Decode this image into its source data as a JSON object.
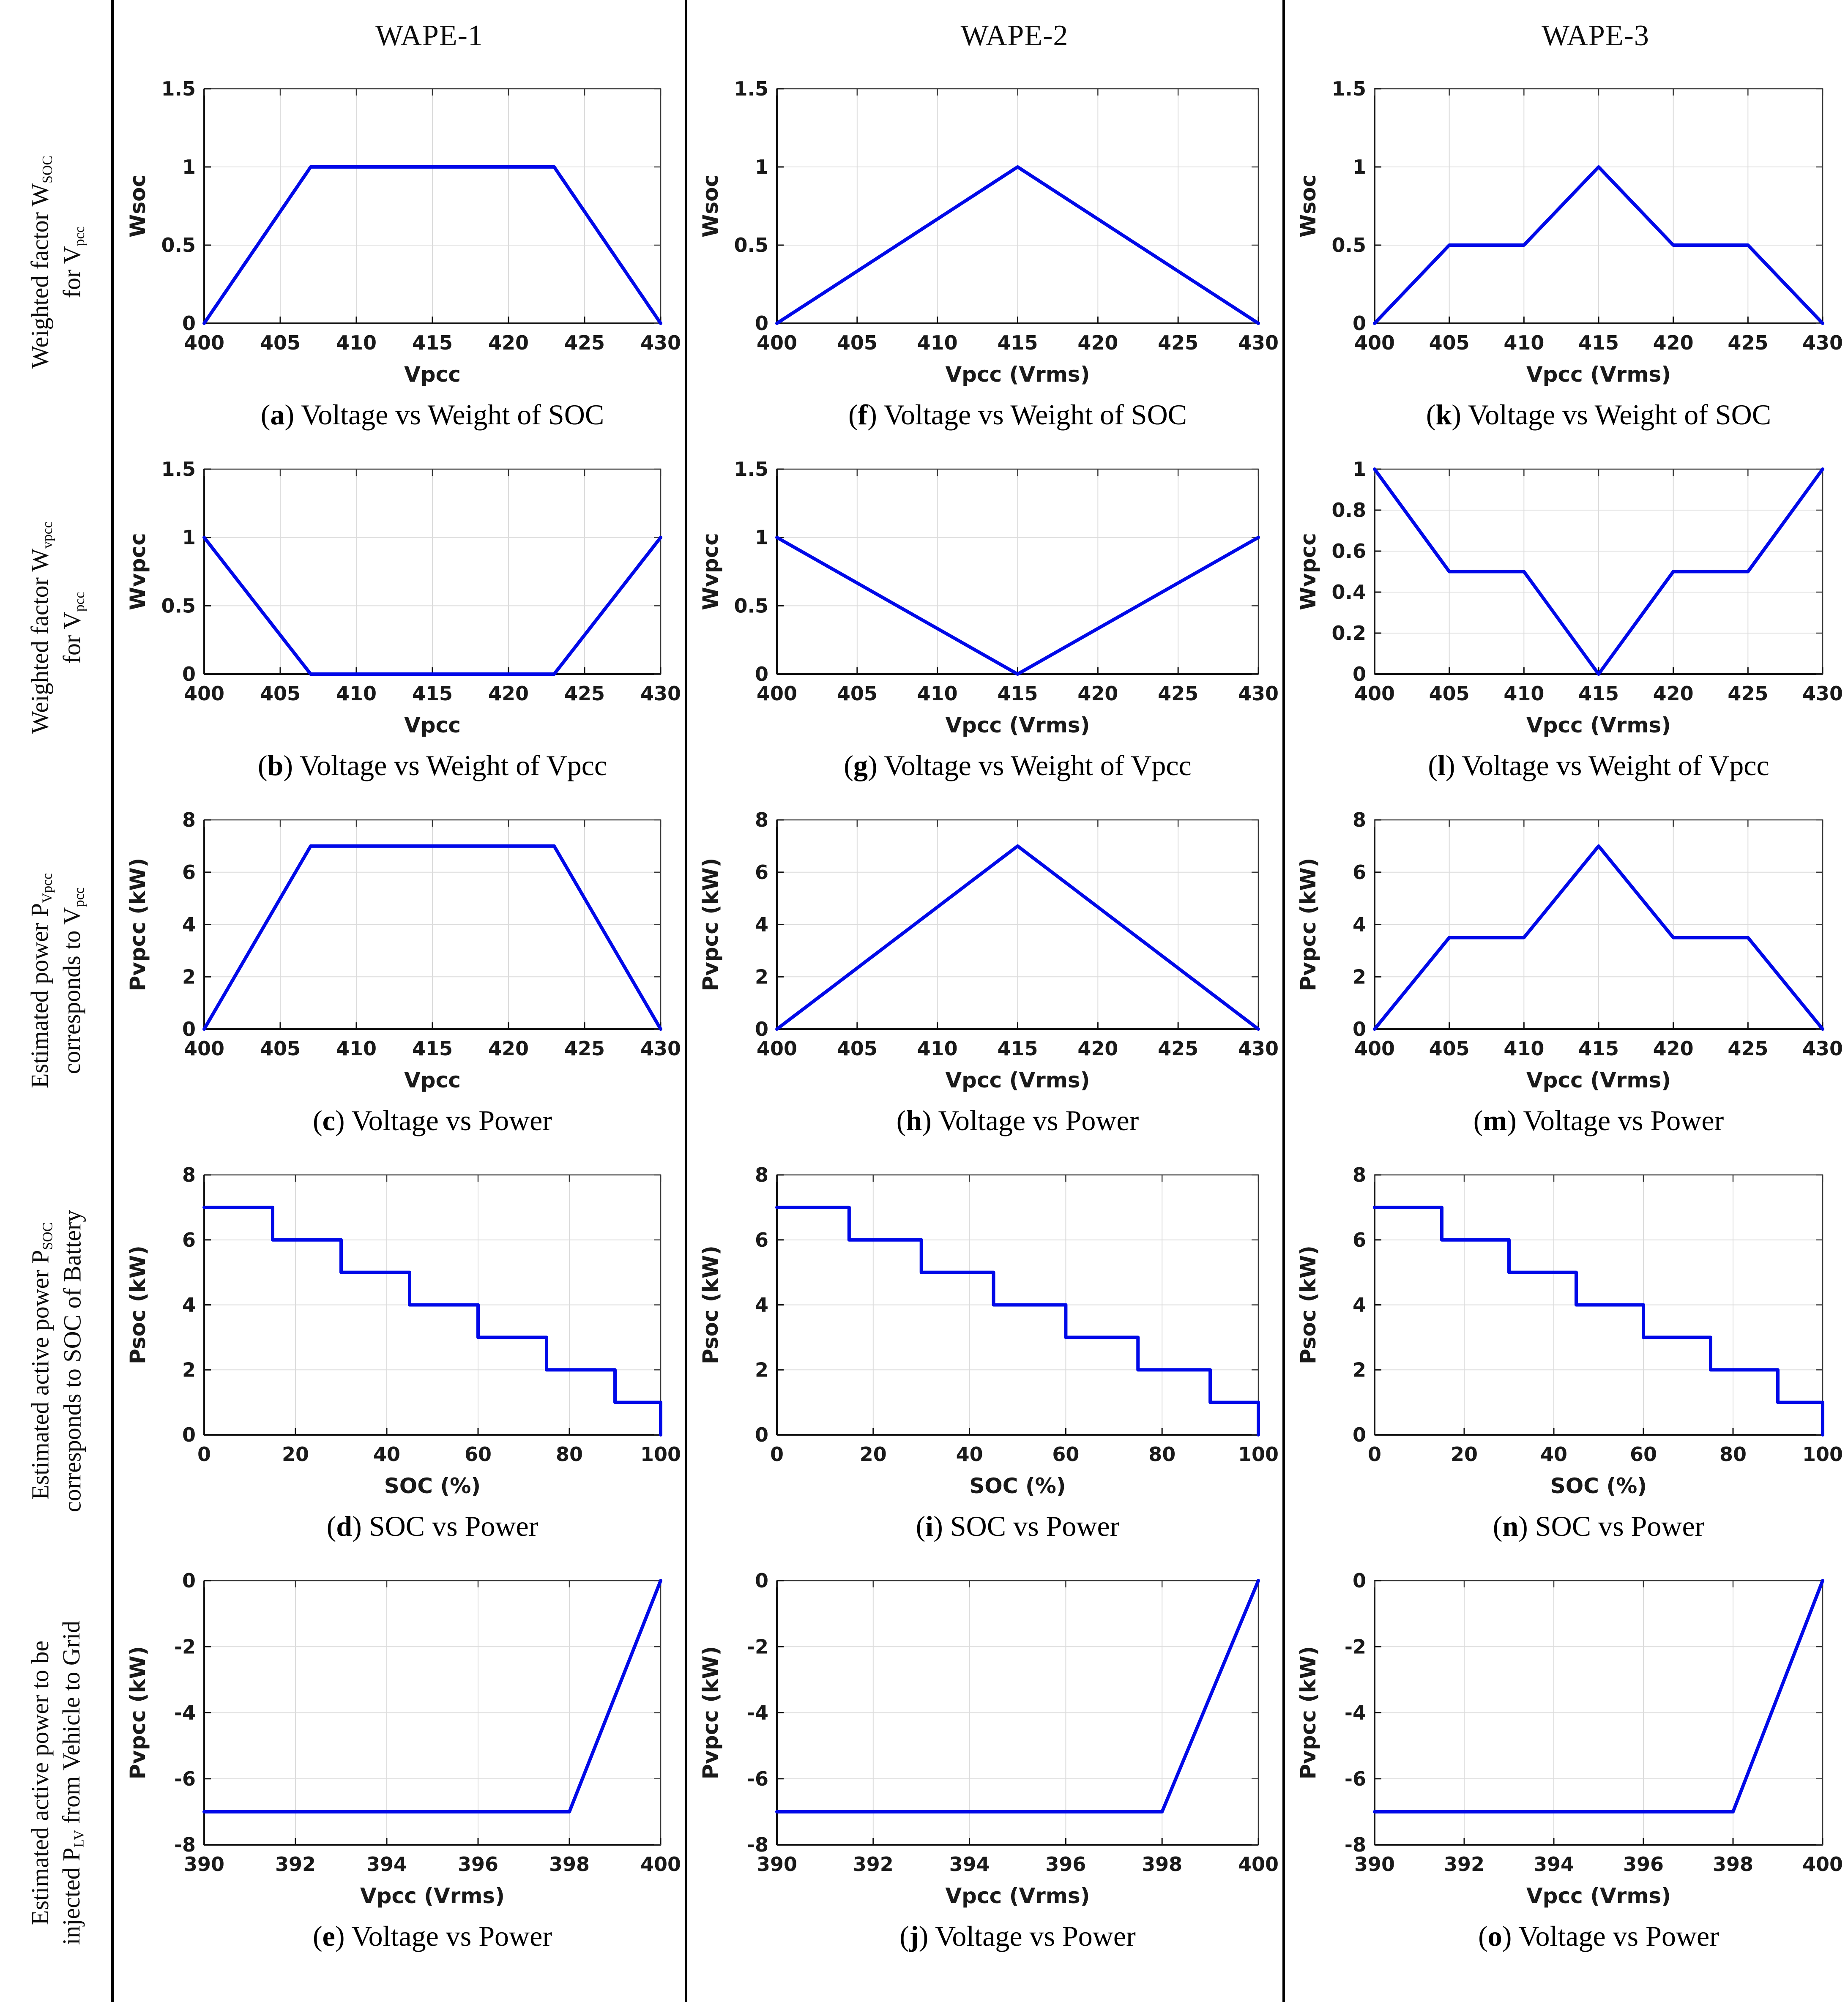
{
  "columns": [
    {
      "title": "WAPE-1"
    },
    {
      "title": "WAPE-2"
    },
    {
      "title": "WAPE-3"
    }
  ],
  "row_labels": [
    {
      "lines": [
        [
          {
            "t": "Weighted factor W"
          },
          {
            "s": "SOC"
          }
        ],
        [
          {
            "t": "for V"
          },
          {
            "s": "pcc"
          }
        ]
      ]
    },
    {
      "lines": [
        [
          {
            "t": "Weighted factor W"
          },
          {
            "s": "vpcc"
          }
        ],
        [
          {
            "t": "for V"
          },
          {
            "s": "pcc"
          }
        ]
      ]
    },
    {
      "lines": [
        [
          {
            "t": "Estimated power P"
          },
          {
            "s": "Vpcc"
          }
        ],
        [
          {
            "t": "corresponds to V"
          },
          {
            "s": "pcc"
          }
        ]
      ]
    },
    {
      "lines": [
        [
          {
            "t": "Estimated active power P"
          },
          {
            "s": "SOC"
          }
        ],
        [
          {
            "t": "corresponds to SOC of Battery"
          }
        ]
      ]
    },
    {
      "lines": [
        [
          {
            "t": "Estimated active power to be"
          }
        ],
        [
          {
            "t": "injected P"
          },
          {
            "s": "LV"
          },
          {
            "t": " from Vehicle to Grid"
          }
        ]
      ]
    }
  ],
  "colors": {
    "line": "#0009e8",
    "grid": "#dcdcdc",
    "axis_box": "#3a3a3a",
    "axis_dark": "#111111",
    "text": "#1a1a1a",
    "divider": "#000000"
  },
  "chart_data": [
    {
      "id": "a",
      "type": "line",
      "title": "",
      "xlabel": "Vpcc",
      "ylabel": "Wsoc",
      "xlim": [
        400,
        430
      ],
      "xticks": [
        400,
        405,
        410,
        415,
        420,
        425,
        430
      ],
      "ylim": [
        0,
        1.5
      ],
      "yticks": [
        0,
        0.5,
        1,
        1.5
      ],
      "points": [
        [
          400,
          0
        ],
        [
          407,
          1
        ],
        [
          423,
          1
        ],
        [
          430,
          0
        ]
      ],
      "caption_letter": "a",
      "caption_text": "Voltage vs Weight of SOC"
    },
    {
      "id": "f",
      "type": "line",
      "title": "",
      "xlabel": "Vpcc (Vrms)",
      "ylabel": "Wsoc",
      "xlim": [
        400,
        430
      ],
      "xticks": [
        400,
        405,
        410,
        415,
        420,
        425,
        430
      ],
      "ylim": [
        0,
        1.5
      ],
      "yticks": [
        0,
        0.5,
        1,
        1.5
      ],
      "points": [
        [
          400,
          0
        ],
        [
          415,
          1
        ],
        [
          430,
          0
        ]
      ],
      "caption_letter": "f",
      "caption_text": "Voltage vs Weight of SOC"
    },
    {
      "id": "k",
      "type": "line",
      "title": "",
      "xlabel": "Vpcc (Vrms)",
      "ylabel": "Wsoc",
      "xlim": [
        400,
        430
      ],
      "xticks": [
        400,
        405,
        410,
        415,
        420,
        425,
        430
      ],
      "ylim": [
        0,
        1.5
      ],
      "yticks": [
        0,
        0.5,
        1,
        1.5
      ],
      "points": [
        [
          400,
          0
        ],
        [
          405,
          0.5
        ],
        [
          410,
          0.5
        ],
        [
          415,
          1
        ],
        [
          420,
          0.5
        ],
        [
          425,
          0.5
        ],
        [
          430,
          0
        ]
      ],
      "caption_letter": "k",
      "caption_text": "Voltage vs Weight of SOC"
    },
    {
      "id": "b",
      "type": "line",
      "title": "",
      "xlabel": "Vpcc",
      "ylabel": "Wvpcc",
      "xlim": [
        400,
        430
      ],
      "xticks": [
        400,
        405,
        410,
        415,
        420,
        425,
        430
      ],
      "ylim": [
        0,
        1.5
      ],
      "yticks": [
        0,
        0.5,
        1,
        1.5
      ],
      "points": [
        [
          400,
          1
        ],
        [
          407,
          0
        ],
        [
          423,
          0
        ],
        [
          430,
          1
        ]
      ],
      "caption_letter": "b",
      "caption_text": "Voltage vs Weight of Vpcc"
    },
    {
      "id": "g",
      "type": "line",
      "title": "",
      "xlabel": "Vpcc (Vrms)",
      "ylabel": "Wvpcc",
      "xlim": [
        400,
        430
      ],
      "xticks": [
        400,
        405,
        410,
        415,
        420,
        425,
        430
      ],
      "ylim": [
        0,
        1.5
      ],
      "yticks": [
        0,
        0.5,
        1,
        1.5
      ],
      "points": [
        [
          400,
          1
        ],
        [
          415,
          0
        ],
        [
          430,
          1
        ]
      ],
      "caption_letter": "g",
      "caption_text": "Voltage vs Weight of Vpcc"
    },
    {
      "id": "l",
      "type": "line",
      "title": "",
      "xlabel": "Vpcc (Vrms)",
      "ylabel": "Wvpcc",
      "xlim": [
        400,
        430
      ],
      "xticks": [
        400,
        405,
        410,
        415,
        420,
        425,
        430
      ],
      "ylim": [
        0,
        1
      ],
      "yticks": [
        0,
        0.2,
        0.4,
        0.6,
        0.8,
        1
      ],
      "points": [
        [
          400,
          1
        ],
        [
          405,
          0.5
        ],
        [
          410,
          0.5
        ],
        [
          415,
          0
        ],
        [
          420,
          0.5
        ],
        [
          425,
          0.5
        ],
        [
          430,
          1
        ]
      ],
      "caption_letter": "l",
      "caption_text": "Voltage vs Weight of Vpcc"
    },
    {
      "id": "c",
      "type": "line",
      "title": "",
      "xlabel": "Vpcc",
      "ylabel": "Pvpcc (kW)",
      "xlim": [
        400,
        430
      ],
      "xticks": [
        400,
        405,
        410,
        415,
        420,
        425,
        430
      ],
      "ylim": [
        0,
        8
      ],
      "yticks": [
        0,
        2,
        4,
        6,
        8
      ],
      "points": [
        [
          400,
          0
        ],
        [
          407,
          7
        ],
        [
          423,
          7
        ],
        [
          430,
          0
        ]
      ],
      "caption_letter": "c",
      "caption_text": "Voltage vs Power"
    },
    {
      "id": "h",
      "type": "line",
      "title": "",
      "xlabel": "Vpcc (Vrms)",
      "ylabel": "Pvpcc (kW)",
      "xlim": [
        400,
        430
      ],
      "xticks": [
        400,
        405,
        410,
        415,
        420,
        425,
        430
      ],
      "ylim": [
        0,
        8
      ],
      "yticks": [
        0,
        2,
        4,
        6,
        8
      ],
      "points": [
        [
          400,
          0
        ],
        [
          415,
          7
        ],
        [
          430,
          0
        ]
      ],
      "caption_letter": "h",
      "caption_text": "Voltage vs Power"
    },
    {
      "id": "m",
      "type": "line",
      "title": "",
      "xlabel": "Vpcc (Vrms)",
      "ylabel": "Pvpcc (kW)",
      "xlim": [
        400,
        430
      ],
      "xticks": [
        400,
        405,
        410,
        415,
        420,
        425,
        430
      ],
      "ylim": [
        0,
        8
      ],
      "yticks": [
        0,
        2,
        4,
        6,
        8
      ],
      "points": [
        [
          400,
          0
        ],
        [
          405,
          3.5
        ],
        [
          410,
          3.5
        ],
        [
          415,
          7
        ],
        [
          420,
          3.5
        ],
        [
          425,
          3.5
        ],
        [
          430,
          0
        ]
      ],
      "caption_letter": "m",
      "caption_text": "Voltage vs Power"
    },
    {
      "id": "d",
      "type": "line",
      "title": "",
      "xlabel": "SOC (%)",
      "ylabel": "Psoc (kW)",
      "xlim": [
        0,
        100
      ],
      "xticks": [
        0,
        20,
        40,
        60,
        80,
        100
      ],
      "ylim": [
        0,
        8
      ],
      "yticks": [
        0,
        2,
        4,
        6,
        8
      ],
      "points": [
        [
          0,
          7
        ],
        [
          15,
          7
        ],
        [
          15,
          6
        ],
        [
          30,
          6
        ],
        [
          30,
          5
        ],
        [
          45,
          5
        ],
        [
          45,
          4
        ],
        [
          60,
          4
        ],
        [
          60,
          3
        ],
        [
          75,
          3
        ],
        [
          75,
          2
        ],
        [
          90,
          2
        ],
        [
          90,
          1
        ],
        [
          100,
          1
        ],
        [
          100,
          0
        ]
      ],
      "caption_letter": "d",
      "caption_text": "SOC vs Power"
    },
    {
      "id": "i",
      "type": "line",
      "title": "",
      "xlabel": "SOC (%)",
      "ylabel": "Psoc (kW)",
      "xlim": [
        0,
        100
      ],
      "xticks": [
        0,
        20,
        40,
        60,
        80,
        100
      ],
      "ylim": [
        0,
        8
      ],
      "yticks": [
        0,
        2,
        4,
        6,
        8
      ],
      "points": [
        [
          0,
          7
        ],
        [
          15,
          7
        ],
        [
          15,
          6
        ],
        [
          30,
          6
        ],
        [
          30,
          5
        ],
        [
          45,
          5
        ],
        [
          45,
          4
        ],
        [
          60,
          4
        ],
        [
          60,
          3
        ],
        [
          75,
          3
        ],
        [
          75,
          2
        ],
        [
          90,
          2
        ],
        [
          90,
          1
        ],
        [
          100,
          1
        ],
        [
          100,
          0
        ]
      ],
      "caption_letter": "i",
      "caption_text": "SOC vs Power"
    },
    {
      "id": "n",
      "type": "line",
      "title": "",
      "xlabel": "SOC (%)",
      "ylabel": "Psoc (kW)",
      "xlim": [
        0,
        100
      ],
      "xticks": [
        0,
        20,
        40,
        60,
        80,
        100
      ],
      "ylim": [
        0,
        8
      ],
      "yticks": [
        0,
        2,
        4,
        6,
        8
      ],
      "points": [
        [
          0,
          7
        ],
        [
          15,
          7
        ],
        [
          15,
          6
        ],
        [
          30,
          6
        ],
        [
          30,
          5
        ],
        [
          45,
          5
        ],
        [
          45,
          4
        ],
        [
          60,
          4
        ],
        [
          60,
          3
        ],
        [
          75,
          3
        ],
        [
          75,
          2
        ],
        [
          90,
          2
        ],
        [
          90,
          1
        ],
        [
          100,
          1
        ],
        [
          100,
          0
        ]
      ],
      "caption_letter": "n",
      "caption_text": "SOC vs Power"
    },
    {
      "id": "e",
      "type": "line",
      "title": "",
      "xlabel": "Vpcc (Vrms)",
      "ylabel": "Pvpcc (kW)",
      "xlim": [
        390,
        400
      ],
      "xticks": [
        390,
        392,
        394,
        396,
        398,
        400
      ],
      "ylim": [
        -8,
        0
      ],
      "yticks": [
        -8,
        -6,
        -4,
        -2,
        0
      ],
      "points": [
        [
          390,
          -7
        ],
        [
          398,
          -7
        ],
        [
          400,
          0
        ]
      ],
      "caption_letter": "e",
      "caption_text": "Voltage vs Power"
    },
    {
      "id": "j",
      "type": "line",
      "title": "",
      "xlabel": "Vpcc (Vrms)",
      "ylabel": "Pvpcc (kW)",
      "xlim": [
        390,
        400
      ],
      "xticks": [
        390,
        392,
        394,
        396,
        398,
        400
      ],
      "ylim": [
        -8,
        0
      ],
      "yticks": [
        -8,
        -6,
        -4,
        -2,
        0
      ],
      "points": [
        [
          390,
          -7
        ],
        [
          398,
          -7
        ],
        [
          400,
          0
        ]
      ],
      "caption_letter": "j",
      "caption_text": "Voltage vs Power"
    },
    {
      "id": "o",
      "type": "line",
      "title": "",
      "xlabel": "Vpcc (Vrms)",
      "ylabel": "Pvpcc (kW)",
      "xlim": [
        390,
        400
      ],
      "xticks": [
        390,
        392,
        394,
        396,
        398,
        400
      ],
      "ylim": [
        -8,
        0
      ],
      "yticks": [
        -8,
        -6,
        -4,
        -2,
        0
      ],
      "points": [
        [
          390,
          -7
        ],
        [
          398,
          -7
        ],
        [
          400,
          0
        ]
      ],
      "caption_letter": "o",
      "caption_text": "Voltage vs Power"
    }
  ]
}
